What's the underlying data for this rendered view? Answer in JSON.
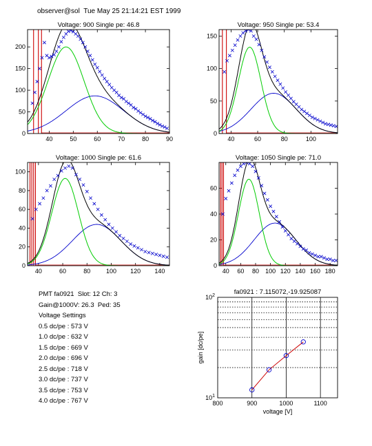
{
  "header": {
    "text": "observer@sol  Tue May 25 21:14:21 EST 1999"
  },
  "info": {
    "lines": [
      "PMT fa0921  Slot: 12 Ch: 3",
      "Gain@1000V: 26.3  Ped: 35",
      "Voltage Settings",
      "0.5 dc/pe : 573 V",
      "1.0 dc/pe : 632 V",
      "1.5 dc/pe : 669 V",
      "2.0 dc/pe : 696 V",
      "2.5 dc/pe : 718 V",
      "3.0 dc/pe : 737 V",
      "3.5 dc/pe : 753 V",
      "4.0 dc/pe : 767 V"
    ]
  },
  "colors": {
    "data": "#0000cc",
    "total_fit": "#000000",
    "single_pe": "#00cc00",
    "multi_pe": "#0000cc",
    "pedestal": "#cc0000",
    "gain_line": "#cc0000"
  },
  "chart_data": [
    {
      "type": "scatter",
      "title": "Voltage: 900  Single pe: 46.8",
      "xlim": [
        31,
        90
      ],
      "ylim": [
        0,
        240
      ],
      "xticks": [
        40,
        50,
        60,
        70,
        80,
        90
      ],
      "yticks": [
        0,
        50,
        100,
        150,
        200
      ],
      "pedestal_lines_x": [
        33.5,
        35.5,
        36.8
      ],
      "fit": {
        "total_peak": [
          48,
          235
        ],
        "single_pe": [
          47,
          200,
          7.5
        ],
        "multi_pe": [
          59,
          87,
          12
        ]
      },
      "data_points": [
        [
          33,
          70
        ],
        [
          34,
          95
        ],
        [
          35,
          120
        ],
        [
          36,
          150
        ],
        [
          37,
          175
        ],
        [
          38,
          210
        ],
        [
          39,
          180
        ],
        [
          40,
          175
        ],
        [
          41,
          178
        ],
        [
          42,
          182
        ],
        [
          43,
          190
        ],
        [
          44,
          200
        ],
        [
          45,
          212
        ],
        [
          46,
          222
        ],
        [
          47,
          230
        ],
        [
          48,
          236
        ],
        [
          49,
          238
        ],
        [
          50,
          235
        ],
        [
          51,
          230
        ],
        [
          52,
          225
        ],
        [
          53,
          218
        ],
        [
          54,
          210
        ],
        [
          55,
          200
        ],
        [
          56,
          190
        ],
        [
          57,
          180
        ],
        [
          58,
          170
        ],
        [
          59,
          160
        ],
        [
          60,
          152
        ],
        [
          61,
          143
        ],
        [
          62,
          135
        ],
        [
          63,
          127
        ],
        [
          64,
          120
        ],
        [
          65,
          113
        ],
        [
          66,
          106
        ],
        [
          67,
          100
        ],
        [
          68,
          95
        ],
        [
          69,
          88
        ],
        [
          70,
          83
        ],
        [
          71,
          80
        ],
        [
          72,
          74
        ],
        [
          73,
          70
        ],
        [
          74,
          66
        ],
        [
          75,
          60
        ],
        [
          76,
          57
        ],
        [
          77,
          52
        ],
        [
          78,
          48
        ],
        [
          79,
          44
        ],
        [
          80,
          40
        ],
        [
          81,
          37
        ],
        [
          82,
          34
        ],
        [
          83,
          30
        ],
        [
          84,
          27
        ],
        [
          85,
          23
        ],
        [
          86,
          20
        ],
        [
          87,
          17
        ],
        [
          88,
          15
        ],
        [
          89,
          12
        ]
      ]
    },
    {
      "type": "scatter",
      "title": "Voltage: 950  Single pe: 53.4",
      "xlim": [
        31,
        120
      ],
      "ylim": [
        0,
        160
      ],
      "xticks": [
        40,
        60,
        80,
        100
      ],
      "yticks": [
        0,
        50,
        100,
        150
      ],
      "pedestal_lines_x": [
        33.5,
        36.5
      ],
      "fit": {
        "total_peak": [
          56,
          162
        ],
        "single_pe": [
          54,
          133,
          8.5
        ],
        "multi_pe": [
          72,
          62,
          17
        ]
      },
      "data_points": [
        [
          35,
          95
        ],
        [
          37,
          112
        ],
        [
          39,
          120
        ],
        [
          41,
          128
        ],
        [
          43,
          136
        ],
        [
          45,
          144
        ],
        [
          47,
          150
        ],
        [
          49,
          155
        ],
        [
          51,
          158
        ],
        [
          53,
          160
        ],
        [
          55,
          158
        ],
        [
          57,
          150
        ],
        [
          59,
          145
        ],
        [
          61,
          137
        ],
        [
          63,
          128
        ],
        [
          65,
          118
        ],
        [
          67,
          110
        ],
        [
          69,
          102
        ],
        [
          71,
          95
        ],
        [
          73,
          88
        ],
        [
          75,
          82
        ],
        [
          77,
          76
        ],
        [
          79,
          70
        ],
        [
          81,
          64
        ],
        [
          83,
          59
        ],
        [
          85,
          54
        ],
        [
          87,
          49
        ],
        [
          89,
          45
        ],
        [
          91,
          41
        ],
        [
          93,
          37
        ],
        [
          95,
          34
        ],
        [
          97,
          31
        ],
        [
          99,
          28
        ],
        [
          101,
          25
        ],
        [
          103,
          23
        ],
        [
          105,
          21
        ],
        [
          107,
          19
        ],
        [
          109,
          17
        ],
        [
          111,
          15
        ],
        [
          113,
          14
        ],
        [
          115,
          13
        ],
        [
          117,
          12
        ],
        [
          119,
          11
        ]
      ]
    },
    {
      "type": "scatter",
      "title": "Voltage: 1000  Single pe: 61.6",
      "xlim": [
        31,
        148
      ],
      "ylim": [
        0,
        110
      ],
      "xticks": [
        40,
        60,
        80,
        100,
        120,
        140
      ],
      "yticks": [
        0,
        20,
        40,
        60,
        80,
        100
      ],
      "pedestal_lines_x": [
        33,
        34.5,
        36,
        37.5
      ],
      "fit": {
        "total_peak": [
          64,
          108
        ],
        "single_pe": [
          62,
          93,
          11
        ],
        "multi_pe": [
          88,
          44,
          20
        ]
      },
      "data_points": [
        [
          35,
          50
        ],
        [
          38,
          60
        ],
        [
          41,
          66
        ],
        [
          44,
          72
        ],
        [
          47,
          80
        ],
        [
          50,
          85
        ],
        [
          53,
          92
        ],
        [
          56,
          96
        ],
        [
          59,
          101
        ],
        [
          62,
          104
        ],
        [
          65,
          106
        ],
        [
          68,
          104
        ],
        [
          71,
          97
        ],
        [
          74,
          92
        ],
        [
          77,
          86
        ],
        [
          80,
          79
        ],
        [
          83,
          72
        ],
        [
          86,
          66
        ],
        [
          89,
          60
        ],
        [
          92,
          54
        ],
        [
          95,
          49
        ],
        [
          98,
          44
        ],
        [
          101,
          40
        ],
        [
          104,
          36
        ],
        [
          107,
          32
        ],
        [
          110,
          29
        ],
        [
          113,
          26
        ],
        [
          116,
          23
        ],
        [
          119,
          21
        ],
        [
          122,
          19
        ],
        [
          125,
          17
        ],
        [
          128,
          15
        ],
        [
          131,
          14
        ],
        [
          134,
          13
        ],
        [
          137,
          12
        ],
        [
          140,
          11
        ],
        [
          143,
          10
        ],
        [
          146,
          9
        ]
      ]
    },
    {
      "type": "scatter",
      "title": "Voltage: 1050  Single pe: 71.0",
      "xlim": [
        31,
        190
      ],
      "ylim": [
        0,
        80
      ],
      "xticks": [
        40,
        60,
        80,
        100,
        120,
        140,
        160,
        180
      ],
      "yticks": [
        0,
        20,
        40,
        60
      ],
      "pedestal_lines_x": [
        33,
        35,
        37
      ],
      "fit": {
        "total_peak": [
          74,
          82
        ],
        "single_pe": [
          71,
          67,
          14
        ],
        "multi_pe": [
          106,
          33,
          28
        ]
      },
      "data_points": [
        [
          36,
          40
        ],
        [
          40,
          52
        ],
        [
          44,
          58
        ],
        [
          48,
          64
        ],
        [
          52,
          70
        ],
        [
          56,
          74
        ],
        [
          60,
          77
        ],
        [
          64,
          79
        ],
        [
          68,
          80
        ],
        [
          72,
          79
        ],
        [
          76,
          77
        ],
        [
          80,
          73
        ],
        [
          84,
          68
        ],
        [
          88,
          62
        ],
        [
          92,
          56
        ],
        [
          96,
          51
        ],
        [
          100,
          46
        ],
        [
          104,
          42
        ],
        [
          108,
          38
        ],
        [
          112,
          34
        ],
        [
          116,
          30
        ],
        [
          120,
          27
        ],
        [
          124,
          24
        ],
        [
          128,
          21
        ],
        [
          132,
          19
        ],
        [
          136,
          17
        ],
        [
          140,
          15
        ],
        [
          144,
          13
        ],
        [
          148,
          12
        ],
        [
          152,
          10
        ],
        [
          156,
          9
        ],
        [
          160,
          8
        ],
        [
          164,
          7
        ],
        [
          168,
          7
        ],
        [
          172,
          6
        ],
        [
          176,
          5
        ],
        [
          180,
          5
        ],
        [
          184,
          4
        ],
        [
          188,
          4
        ]
      ]
    },
    {
      "type": "line",
      "title": "fa0921 : 7.115072,-19.925087",
      "xlabel": "voltage [V]",
      "ylabel": "gain [dc/pe]",
      "xlim": [
        800,
        1150
      ],
      "ylim_log": [
        10,
        100
      ],
      "yscale": "log",
      "xticks": [
        800,
        900,
        1000,
        1100
      ],
      "yticks": [
        {
          "value": 10,
          "base": "10",
          "exp": "1"
        },
        {
          "value": 100,
          "base": "10",
          "exp": "2"
        }
      ],
      "x": [
        900,
        950,
        1000,
        1050
      ],
      "values": [
        12.0,
        19.0,
        26.3,
        36.0
      ],
      "grid": "dotted horizontal, solid vertical"
    }
  ]
}
